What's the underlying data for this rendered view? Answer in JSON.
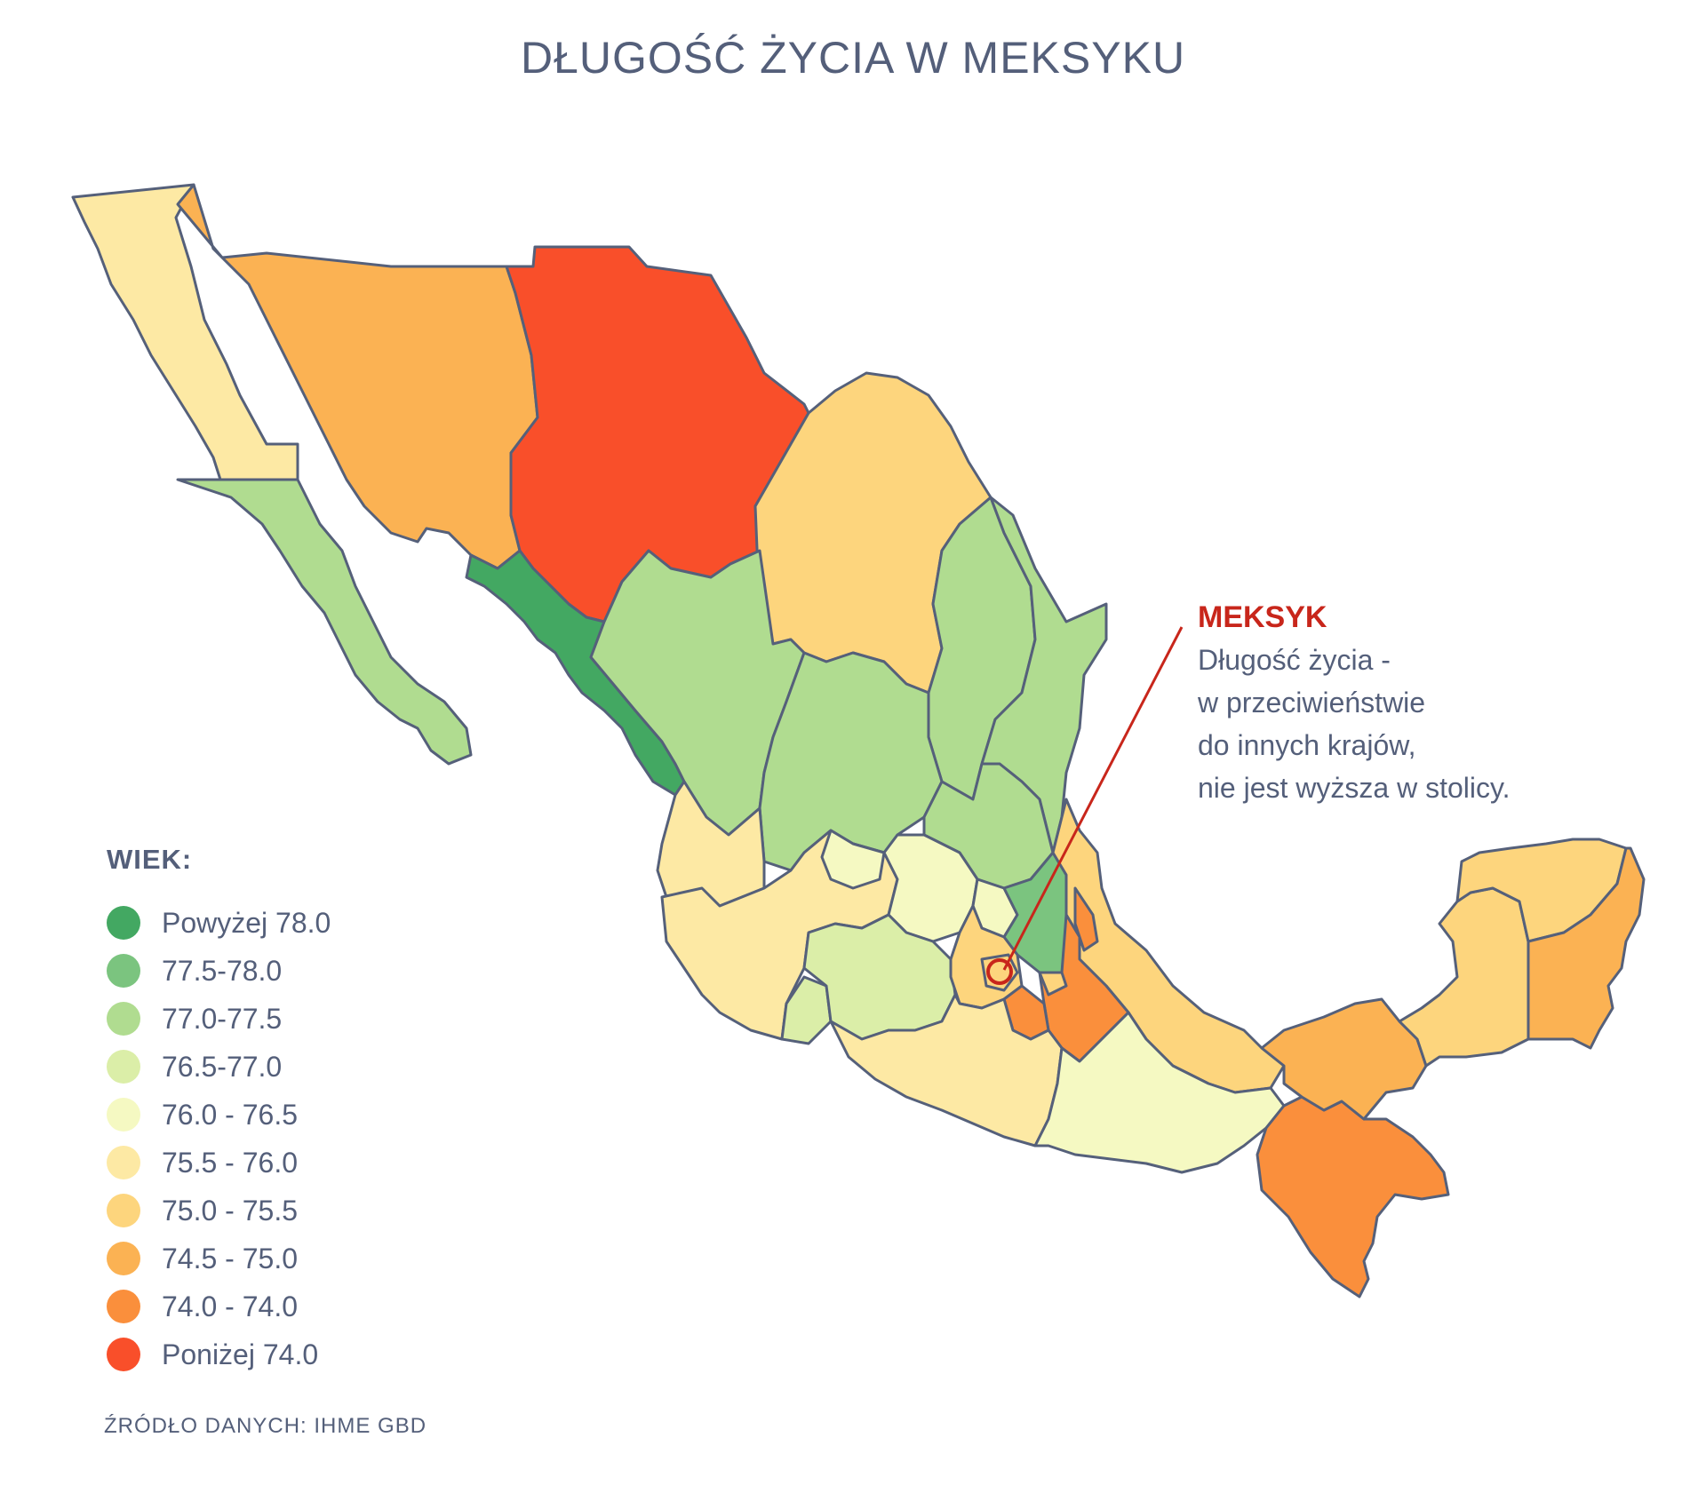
{
  "title": "DŁUGOŚĆ ŻYCIA W MEKSYKU",
  "legend": {
    "heading": "WIEK:",
    "items": [
      {
        "label": "Powyżej 78.0",
        "color": "#43a862"
      },
      {
        "label": "77.5-78.0",
        "color": "#7bc47f"
      },
      {
        "label": "77.0-77.5",
        "color": "#b0dc90"
      },
      {
        "label": "76.5-77.0",
        "color": "#dbeea8"
      },
      {
        "label": "76.0 - 76.5",
        "color": "#f5f9c2"
      },
      {
        "label": "75.5 - 76.0",
        "color": "#fde9a4"
      },
      {
        "label": "75.0 - 75.5",
        "color": "#fdd57d"
      },
      {
        "label": "74.5 - 75.0",
        "color": "#fbb253"
      },
      {
        "label": "74.0 - 74.0",
        "color": "#fa8f3c"
      },
      {
        "label": "Poniżej 74.0",
        "color": "#f94f2a"
      }
    ]
  },
  "annotation": {
    "title": "MEKSYK",
    "lines": [
      "Długość życia -",
      "w przeciwieństwie",
      "do innych krajów,",
      "nie jest wyższa w stolicy."
    ],
    "color": "#c8261b"
  },
  "source": "ŹRÓDŁO DANYCH: IHME GBD",
  "colors": {
    "outline": "#55607a",
    "text": "#545f7a"
  }
}
